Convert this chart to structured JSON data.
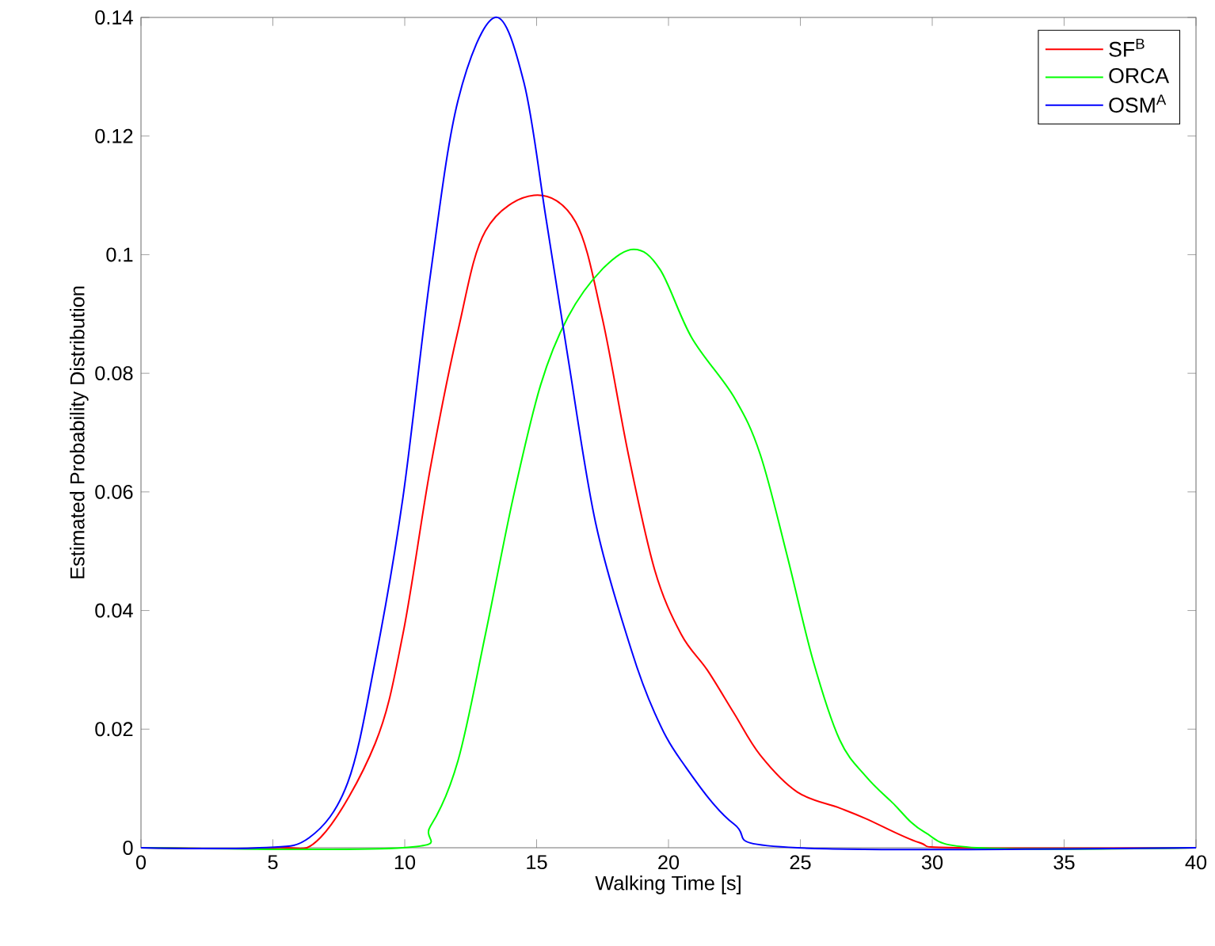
{
  "chart_data": {
    "type": "line",
    "xlabel": "Walking Time [s]",
    "ylabel": "Estimated Probability Distribution",
    "xlim": [
      0,
      40
    ],
    "ylim": [
      0,
      0.14
    ],
    "xticks": [
      0,
      5,
      10,
      15,
      20,
      25,
      30,
      35,
      40
    ],
    "yticks": [
      0,
      0.02,
      0.04,
      0.06,
      0.08,
      0.1,
      0.12,
      0.14
    ],
    "grid": false,
    "legend": "top right",
    "marker": "none",
    "line_style": "solid",
    "series": [
      {
        "name": "SF$^{B}$",
        "color": "#ff0000",
        "x": [
          0,
          5,
          6.8,
          8.88,
          9.93,
          10.97,
          12.02,
          13.06,
          14.9,
          16.48,
          17.48,
          18.48,
          19.48,
          20.48,
          21.48,
          22.48,
          23.48,
          24.88,
          26.49,
          27.49,
          29.49,
          31,
          40
        ],
        "values": [
          0,
          0,
          0.0017,
          0.0176,
          0.036,
          0.064,
          0.0872,
          0.104,
          0.11,
          0.1055,
          0.0895,
          0.0663,
          0.0468,
          0.036,
          0.0299,
          0.0227,
          0.0156,
          0.0094,
          0.0067,
          0.0049,
          0.0009,
          0,
          0
        ]
      },
      {
        "name": "ORCA",
        "color": "#00ff00",
        "x": [
          0,
          9.93,
          10.97,
          12.02,
          13.06,
          14.11,
          15.15,
          16.19,
          17.48,
          18.68,
          19.68,
          20.88,
          22.48,
          23.48,
          24.49,
          25.48,
          26.49,
          27.49,
          28.49,
          29.69,
          31.69,
          40
        ],
        "values": [
          0,
          0,
          0.0036,
          0.0147,
          0.036,
          0.059,
          0.078,
          0.0895,
          0.0975,
          0.1009,
          0.0975,
          0.086,
          0.076,
          0.0663,
          0.0494,
          0.0316,
          0.0182,
          0.012,
          0.0076,
          0.0027,
          0,
          0
        ]
      },
      {
        "name": "OSM$^{A}$",
        "color": "#0000ff",
        "x": [
          0,
          4.5,
          6.38,
          7.84,
          8.88,
          9.93,
          10.97,
          12.02,
          13.42,
          14.52,
          15.36,
          16.19,
          17.24,
          18.58,
          19.48,
          20.48,
          22.48,
          24.88,
          40
        ],
        "values": [
          0,
          0,
          0.0017,
          0.011,
          0.0315,
          0.059,
          0.0965,
          0.126,
          0.14,
          0.129,
          0.106,
          0.0826,
          0.0547,
          0.0335,
          0.0227,
          0.0147,
          0.004,
          0,
          0
        ]
      }
    ]
  }
}
